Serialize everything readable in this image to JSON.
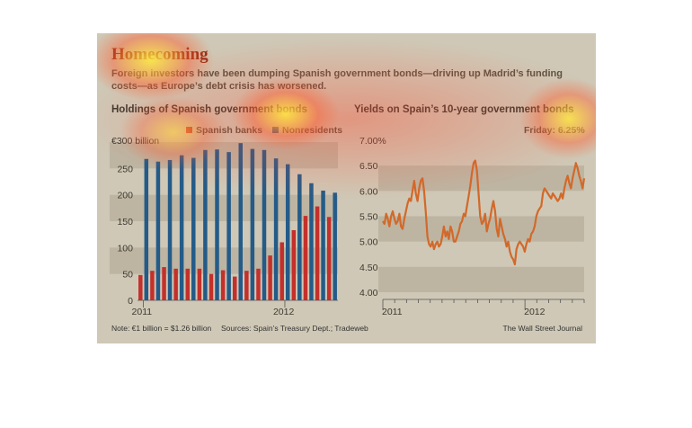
{
  "title": "Homecoming",
  "subtitle": "Foreign investors have been dumping Spanish government bonds—driving up Madrid’s funding costs—as Europe’s debt crisis has worsened.",
  "note": "Note: €1 billion = $1.26 billion",
  "sources": "Sources: Spain’s Treasury Dept.; Tradeweb",
  "credit": "The Wall Street Journal",
  "colors": {
    "background": "#cfc8b6",
    "band": "#bdb5a2",
    "spanish_banks": "#c4302b",
    "nonresidents": "#245b88",
    "yield_line": "#d2692a"
  },
  "chart_data": [
    {
      "type": "bar",
      "title": "Holdings of Spanish government bonds",
      "unit_label": "€300 billion",
      "categories": [
        "2011-01",
        "2011-02",
        "2011-03",
        "2011-04",
        "2011-05",
        "2011-06",
        "2011-07",
        "2011-08",
        "2011-09",
        "2011-10",
        "2011-11",
        "2011-12",
        "2012-01",
        "2012-02",
        "2012-03",
        "2012-04",
        "2012-05"
      ],
      "x_tick_labels": [
        "2011",
        "2012"
      ],
      "series": [
        {
          "name": "Spanish banks",
          "color": "#c4302b",
          "values": [
            48,
            56,
            63,
            60,
            60,
            60,
            50,
            57,
            45,
            56,
            60,
            85,
            110,
            133,
            160,
            178,
            158
          ]
        },
        {
          "name": "Nonresidents",
          "color": "#245b88",
          "values": [
            268,
            263,
            266,
            275,
            270,
            285,
            286,
            281,
            298,
            287,
            285,
            269,
            258,
            239,
            222,
            208,
            204
          ]
        }
      ],
      "y_ticks": [
        "0",
        "50",
        "100",
        "150",
        "200",
        "250"
      ],
      "ylim": [
        0,
        300
      ],
      "legend": "top-right",
      "grid": false
    },
    {
      "type": "line",
      "title": "Yields on Spain’s 10-year government bonds",
      "annotation": "Friday: 6.25%",
      "x_start": "2011-01",
      "x_end": "2012-06",
      "x_tick_labels": [
        "2011",
        "2012"
      ],
      "y_ticks": [
        "4.00",
        "4.50",
        "5.00",
        "5.50",
        "6.00",
        "6.50",
        "7.00%"
      ],
      "ylim": [
        4.0,
        7.0
      ],
      "legend": "none",
      "grid": false,
      "series": [
        {
          "values": [
            5.4,
            5.35,
            5.55,
            5.45,
            5.3,
            5.5,
            5.6,
            5.45,
            5.35,
            5.4,
            5.55,
            5.3,
            5.25,
            5.45,
            5.6,
            5.75,
            5.85,
            5.8,
            6.0,
            6.2,
            5.95,
            5.8,
            6.05,
            6.2,
            6.25,
            6.0,
            5.6,
            5.1,
            4.95,
            4.9,
            5.0,
            4.85,
            4.95,
            5.0,
            4.9,
            4.95,
            5.1,
            5.3,
            5.1,
            5.2,
            5.05,
            5.3,
            5.2,
            5.0,
            5.0,
            5.1,
            5.2,
            5.35,
            5.4,
            5.55,
            5.5,
            5.7,
            5.9,
            6.1,
            6.35,
            6.55,
            6.6,
            6.4,
            5.95,
            5.5,
            5.35,
            5.4,
            5.55,
            5.2,
            5.35,
            5.45,
            5.65,
            5.8,
            5.6,
            5.25,
            5.1,
            5.45,
            5.3,
            5.15,
            5.05,
            4.9,
            5.0,
            4.8,
            4.7,
            4.65,
            4.55,
            4.85,
            4.95,
            5.0,
            4.95,
            4.9,
            4.8,
            4.95,
            5.05,
            5.0,
            5.15,
            5.2,
            5.3,
            5.5,
            5.6,
            5.65,
            5.7,
            5.95,
            6.05,
            6.0,
            5.95,
            5.9,
            5.85,
            5.95,
            5.9,
            5.85,
            5.8,
            5.85,
            5.95,
            5.85,
            6.05,
            6.2,
            6.3,
            6.15,
            6.05,
            6.25,
            6.4,
            6.55,
            6.45,
            6.3,
            6.2,
            6.05,
            6.25
          ]
        }
      ]
    }
  ]
}
